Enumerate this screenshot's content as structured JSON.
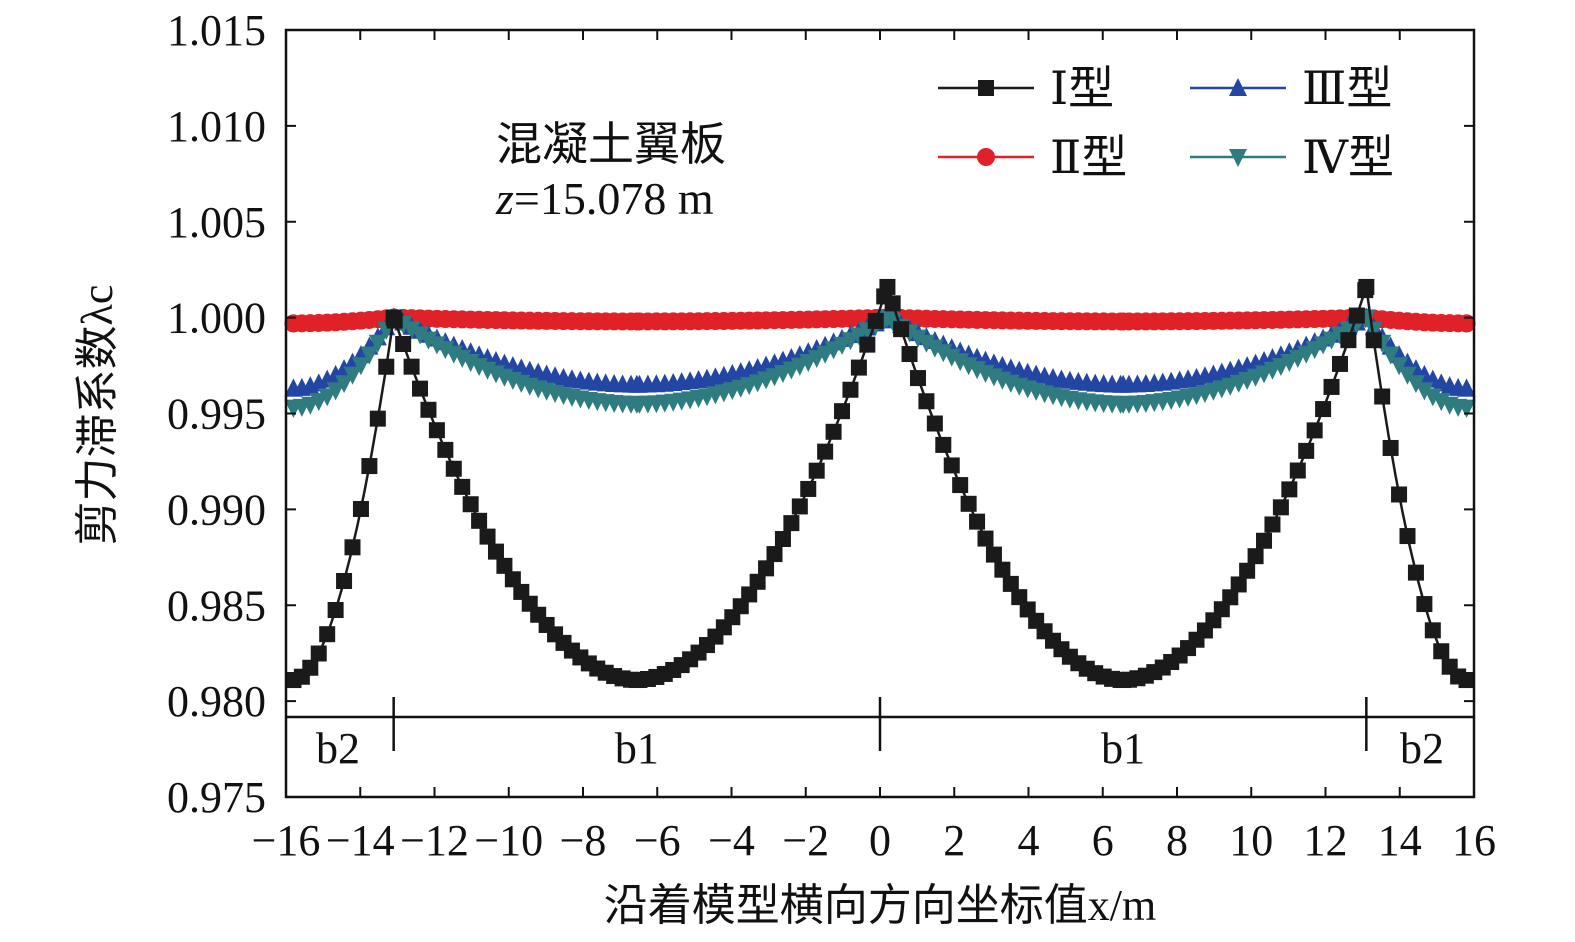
{
  "chart_data": {
    "type": "line",
    "xlabel": "沿着模型横向方向坐标值x/m",
    "ylabel": "剪力滞系数λc",
    "xlim": [
      -16,
      16
    ],
    "ylim": [
      0.975,
      1.015
    ],
    "xticks": [
      -16,
      -14,
      -12,
      -10,
      -8,
      -6,
      -4,
      -2,
      0,
      2,
      4,
      6,
      8,
      10,
      12,
      14,
      16
    ],
    "xtick_labels": [
      "−16",
      "−14",
      "−12",
      "−10",
      "−8",
      "−6",
      "−4",
      "−2",
      "0",
      "2",
      "4",
      "6",
      "8",
      "10",
      "12",
      "14",
      "16"
    ],
    "yticks": [
      0.975,
      0.98,
      0.985,
      0.99,
      0.995,
      1.0,
      1.005,
      1.01,
      1.015
    ],
    "ytick_labels": [
      "0.975",
      "0.980",
      "0.985",
      "0.990",
      "0.995",
      "1.000",
      "1.005",
      "1.010",
      "1.015"
    ],
    "grid": false,
    "legend_position": "top-right",
    "annotation": {
      "line1": "混凝土翼板",
      "line2_var": "z",
      "line2_rest": "=15.078 m"
    },
    "segments": {
      "boundaries": [
        -16,
        -13.1,
        0,
        13.1,
        16
      ],
      "labels": [
        {
          "text": "b2",
          "x": -14.6
        },
        {
          "text": "b1",
          "x": -6.55
        },
        {
          "text": "b1",
          "x": 6.55
        },
        {
          "text": "b2",
          "x": 14.6
        }
      ]
    },
    "series": [
      {
        "name": "Ⅰ型",
        "color": "#1a1a1a",
        "marker": "square",
        "marker_count": 166,
        "peaks": [
          [
            -15.8,
            0.9811
          ],
          [
            -13.1,
            1.0
          ],
          [
            -6.55,
            0.9811
          ],
          [
            0.2,
            1.0016
          ],
          [
            6.55,
            0.9811
          ],
          [
            13.1,
            1.0016
          ],
          [
            15.8,
            0.9811
          ]
        ]
      },
      {
        "name": "Ⅱ型",
        "color": "#e02128",
        "marker": "circle",
        "marker_count": 166,
        "peaks": [
          [
            -15.8,
            0.9997
          ],
          [
            -13.1,
            1.0
          ],
          [
            -6.55,
            0.9998
          ],
          [
            0.2,
            1.0
          ],
          [
            6.55,
            0.9998
          ],
          [
            13.1,
            1.0
          ],
          [
            15.8,
            0.9997
          ]
        ]
      },
      {
        "name": "Ⅲ型",
        "color": "#2346a5",
        "marker": "triangle-up",
        "marker_count": 166,
        "peaks": [
          [
            -15.8,
            0.9963
          ],
          [
            -13.1,
            1.0
          ],
          [
            -6.55,
            0.9965
          ],
          [
            0.2,
            1.0
          ],
          [
            6.55,
            0.9965
          ],
          [
            13.1,
            1.0
          ],
          [
            15.8,
            0.9963
          ]
        ]
      },
      {
        "name": "Ⅳ型",
        "color": "#2e7b80",
        "marker": "triangle-down",
        "marker_count": 166,
        "peaks": [
          [
            -15.8,
            0.9953
          ],
          [
            -13.1,
            1.0
          ],
          [
            -6.55,
            0.9955
          ],
          [
            0.2,
            1.0
          ],
          [
            6.55,
            0.9955
          ],
          [
            13.1,
            1.0
          ],
          [
            15.8,
            0.9953
          ]
        ]
      }
    ]
  }
}
